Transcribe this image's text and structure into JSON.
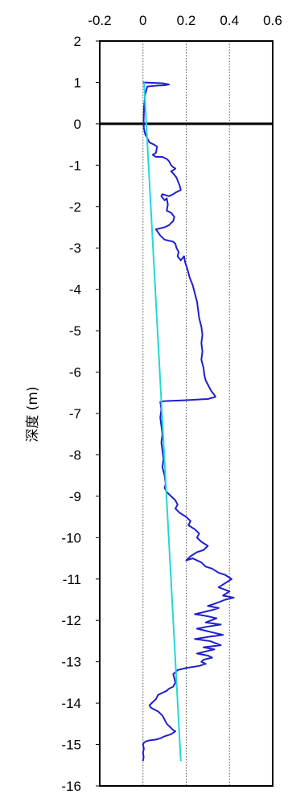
{
  "chart_data": {
    "type": "line",
    "title": "",
    "xlabel": "",
    "ylabel": "深度 (m)",
    "xlim": [
      -0.2,
      0.6
    ],
    "ylim": [
      -16,
      2
    ],
    "x_ticks": [
      -0.2,
      0,
      0.2,
      0.4,
      0.6
    ],
    "x_tick_labels": [
      "-0.2",
      "0",
      "0.2",
      "0.4",
      "0.6"
    ],
    "y_ticks": [
      2,
      1,
      0,
      -1,
      -2,
      -3,
      -4,
      -5,
      -6,
      -7,
      -8,
      -9,
      -10,
      -11,
      -12,
      -13,
      -14,
      -15,
      -16
    ],
    "y_tick_labels": [
      "2",
      "1",
      "0",
      "-1",
      "-2",
      "-3",
      "-4",
      "-5",
      "-6",
      "-7",
      "-8",
      "-9",
      "-10",
      "-11",
      "-12",
      "-13",
      "-14",
      "-15",
      "-16"
    ],
    "grid": "vertical dotted",
    "legend": "none",
    "zero_line": 0,
    "series": [
      {
        "color": "#1f1fcf",
        "points": [
          [
            0.0,
            1.0
          ],
          [
            0.05,
            0.99
          ],
          [
            0.09,
            0.98
          ],
          [
            0.12,
            0.95
          ],
          [
            0.1,
            0.93
          ],
          [
            0.06,
            0.92
          ],
          [
            0.02,
            0.9
          ],
          [
            0.01,
            0.7
          ],
          [
            0.005,
            0.4
          ],
          [
            0.003,
            0.1
          ],
          [
            0.004,
            -0.1
          ],
          [
            0.01,
            -0.25
          ],
          [
            0.02,
            -0.35
          ],
          [
            0.03,
            -0.45
          ],
          [
            0.05,
            -0.5
          ],
          [
            0.065,
            -0.55
          ],
          [
            0.06,
            -0.7
          ],
          [
            0.045,
            -0.75
          ],
          [
            0.06,
            -0.8
          ],
          [
            0.09,
            -0.8
          ],
          [
            0.11,
            -0.85
          ],
          [
            0.12,
            -0.9
          ],
          [
            0.13,
            -1.0
          ],
          [
            0.14,
            -1.05
          ],
          [
            0.15,
            -1.08
          ],
          [
            0.14,
            -1.12
          ],
          [
            0.13,
            -1.15
          ],
          [
            0.14,
            -1.2
          ],
          [
            0.155,
            -1.3
          ],
          [
            0.17,
            -1.5
          ],
          [
            0.175,
            -1.6
          ],
          [
            0.155,
            -1.65
          ],
          [
            0.14,
            -1.7
          ],
          [
            0.12,
            -1.75
          ],
          [
            0.09,
            -1.7
          ],
          [
            0.085,
            -1.75
          ],
          [
            0.1,
            -1.85
          ],
          [
            0.11,
            -1.8
          ],
          [
            0.115,
            -1.95
          ],
          [
            0.11,
            -2.1
          ],
          [
            0.13,
            -2.15
          ],
          [
            0.145,
            -2.25
          ],
          [
            0.14,
            -2.35
          ],
          [
            0.12,
            -2.45
          ],
          [
            0.1,
            -2.5
          ],
          [
            0.06,
            -2.55
          ],
          [
            0.08,
            -2.7
          ],
          [
            0.1,
            -2.8
          ],
          [
            0.14,
            -2.85
          ],
          [
            0.15,
            -2.9
          ],
          [
            0.155,
            -3.0
          ],
          [
            0.165,
            -3.1
          ],
          [
            0.16,
            -3.2
          ],
          [
            0.175,
            -3.3
          ],
          [
            0.19,
            -3.2
          ],
          [
            0.195,
            -3.35
          ],
          [
            0.205,
            -3.5
          ],
          [
            0.215,
            -3.7
          ],
          [
            0.23,
            -3.9
          ],
          [
            0.24,
            -4.1
          ],
          [
            0.25,
            -4.3
          ],
          [
            0.255,
            -4.5
          ],
          [
            0.26,
            -4.7
          ],
          [
            0.27,
            -4.9
          ],
          [
            0.275,
            -5.1
          ],
          [
            0.27,
            -5.3
          ],
          [
            0.275,
            -5.5
          ],
          [
            0.27,
            -5.7
          ],
          [
            0.28,
            -5.9
          ],
          [
            0.285,
            -6.1
          ],
          [
            0.29,
            -6.2
          ],
          [
            0.3,
            -6.3
          ],
          [
            0.315,
            -6.45
          ],
          [
            0.33,
            -6.55
          ],
          [
            0.335,
            -6.6
          ],
          [
            0.3,
            -6.65
          ],
          [
            0.2,
            -6.68
          ],
          [
            0.1,
            -6.7
          ],
          [
            0.08,
            -6.72
          ],
          [
            0.085,
            -6.9
          ],
          [
            0.08,
            -7.1
          ],
          [
            0.085,
            -7.3
          ],
          [
            0.09,
            -7.5
          ],
          [
            0.085,
            -7.7
          ],
          [
            0.09,
            -7.9
          ],
          [
            0.095,
            -8.1
          ],
          [
            0.09,
            -8.3
          ],
          [
            0.1,
            -8.5
          ],
          [
            0.105,
            -8.7
          ],
          [
            0.1,
            -8.8
          ],
          [
            0.11,
            -8.9
          ],
          [
            0.13,
            -9.0
          ],
          [
            0.15,
            -9.1
          ],
          [
            0.16,
            -9.2
          ],
          [
            0.15,
            -9.3
          ],
          [
            0.17,
            -9.4
          ],
          [
            0.2,
            -9.5
          ],
          [
            0.22,
            -9.6
          ],
          [
            0.21,
            -9.7
          ],
          [
            0.24,
            -9.8
          ],
          [
            0.26,
            -9.9
          ],
          [
            0.25,
            -10.0
          ],
          [
            0.27,
            -10.1
          ],
          [
            0.3,
            -10.2
          ],
          [
            0.28,
            -10.3
          ],
          [
            0.25,
            -10.35
          ],
          [
            0.22,
            -10.45
          ],
          [
            0.2,
            -10.55
          ],
          [
            0.23,
            -10.5
          ],
          [
            0.27,
            -10.6
          ],
          [
            0.29,
            -10.7
          ],
          [
            0.32,
            -10.75
          ],
          [
            0.35,
            -10.85
          ],
          [
            0.38,
            -10.9
          ],
          [
            0.41,
            -11.0
          ],
          [
            0.38,
            -11.1
          ],
          [
            0.35,
            -11.2
          ],
          [
            0.4,
            -11.3
          ],
          [
            0.37,
            -11.4
          ],
          [
            0.42,
            -11.45
          ],
          [
            0.38,
            -11.5
          ],
          [
            0.33,
            -11.6
          ],
          [
            0.3,
            -11.65
          ],
          [
            0.35,
            -11.7
          ],
          [
            0.32,
            -11.75
          ],
          [
            0.28,
            -11.8
          ],
          [
            0.24,
            -11.85
          ],
          [
            0.3,
            -11.9
          ],
          [
            0.34,
            -11.95
          ],
          [
            0.29,
            -12.05
          ],
          [
            0.36,
            -12.1
          ],
          [
            0.3,
            -12.15
          ],
          [
            0.25,
            -12.2
          ],
          [
            0.33,
            -12.3
          ],
          [
            0.37,
            -12.35
          ],
          [
            0.3,
            -12.4
          ],
          [
            0.24,
            -12.45
          ],
          [
            0.31,
            -12.5
          ],
          [
            0.36,
            -12.6
          ],
          [
            0.28,
            -12.65
          ],
          [
            0.33,
            -12.7
          ],
          [
            0.29,
            -12.75
          ],
          [
            0.25,
            -12.8
          ],
          [
            0.3,
            -12.85
          ],
          [
            0.32,
            -12.9
          ],
          [
            0.28,
            -12.95
          ],
          [
            0.27,
            -13.0
          ],
          [
            0.29,
            -13.05
          ],
          [
            0.26,
            -13.1
          ],
          [
            0.2,
            -13.15
          ],
          [
            0.16,
            -13.2
          ],
          [
            0.14,
            -13.3
          ],
          [
            0.15,
            -13.5
          ],
          [
            0.14,
            -13.6
          ],
          [
            0.12,
            -13.65
          ],
          [
            0.11,
            -13.7
          ],
          [
            0.09,
            -13.75
          ],
          [
            0.07,
            -13.8
          ],
          [
            0.06,
            -13.9
          ],
          [
            0.05,
            -13.95
          ],
          [
            0.04,
            -14.0
          ],
          [
            0.03,
            -14.05
          ],
          [
            0.035,
            -14.1
          ],
          [
            0.05,
            -14.15
          ],
          [
            0.07,
            -14.2
          ],
          [
            0.09,
            -14.3
          ],
          [
            0.1,
            -14.4
          ],
          [
            0.11,
            -14.5
          ],
          [
            0.12,
            -14.55
          ],
          [
            0.13,
            -14.6
          ],
          [
            0.14,
            -14.65
          ],
          [
            0.15,
            -14.68
          ],
          [
            0.13,
            -14.75
          ],
          [
            0.1,
            -14.8
          ],
          [
            0.08,
            -14.85
          ],
          [
            0.06,
            -14.88
          ],
          [
            0.03,
            -14.9
          ],
          [
            0.015,
            -14.92
          ],
          [
            0.005,
            -14.95
          ],
          [
            0.0,
            -15.0
          ],
          [
            0.004,
            -15.1
          ],
          [
            0.0,
            -15.2
          ],
          [
            0.003,
            -15.3
          ],
          [
            0.0,
            -15.4
          ]
        ]
      },
      {
        "color": "#22d8d8",
        "points": [
          [
            0.005,
            1.0
          ],
          [
            0.175,
            -15.4
          ]
        ]
      }
    ]
  }
}
